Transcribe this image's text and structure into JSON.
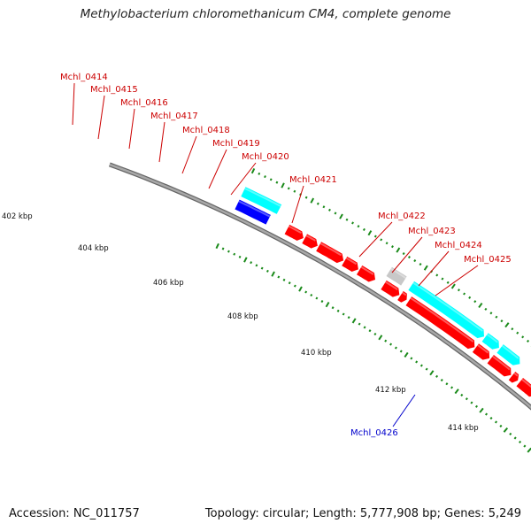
{
  "title": "Methylobacterium chloromethanicum CM4, complete genome",
  "accession": "Accession: NC_011757",
  "topology": "Topology: circular; Length: 5,777,908 bp; Genes: 5,249",
  "colors": {
    "forward_gene": "#ff0000",
    "rna_gene": "#00ffff",
    "other_gene": "#c8c8c8",
    "reverse_gene": "#0000ff",
    "orange_gene": "#ff9900",
    "ticks": "#1a8a1a",
    "backbone": "#888888"
  },
  "kbp_labels": [
    "402 kbp",
    "404 kbp",
    "406 kbp",
    "408 kbp",
    "410 kbp",
    "412 kbp",
    "414 kbp"
  ],
  "gene_labels": [
    {
      "name": "Mchl_0414",
      "color": "#cc0000"
    },
    {
      "name": "Mchl_0415",
      "color": "#cc0000"
    },
    {
      "name": "Mchl_0416",
      "color": "#cc0000"
    },
    {
      "name": "Mchl_0417",
      "color": "#cc0000"
    },
    {
      "name": "Mchl_0418",
      "color": "#cc0000"
    },
    {
      "name": "Mchl_0419",
      "color": "#cc0000"
    },
    {
      "name": "Mchl_0420",
      "color": "#cc0000"
    },
    {
      "name": "Mchl_0421",
      "color": "#cc0000"
    },
    {
      "name": "Mchl_0422",
      "color": "#cc0000"
    },
    {
      "name": "Mchl_0423",
      "color": "#cc0000"
    },
    {
      "name": "Mchl_0424",
      "color": "#cc0000"
    },
    {
      "name": "Mchl_0425",
      "color": "#cc0000"
    },
    {
      "name": "Mchl_0426",
      "color": "#0000cc"
    }
  ]
}
